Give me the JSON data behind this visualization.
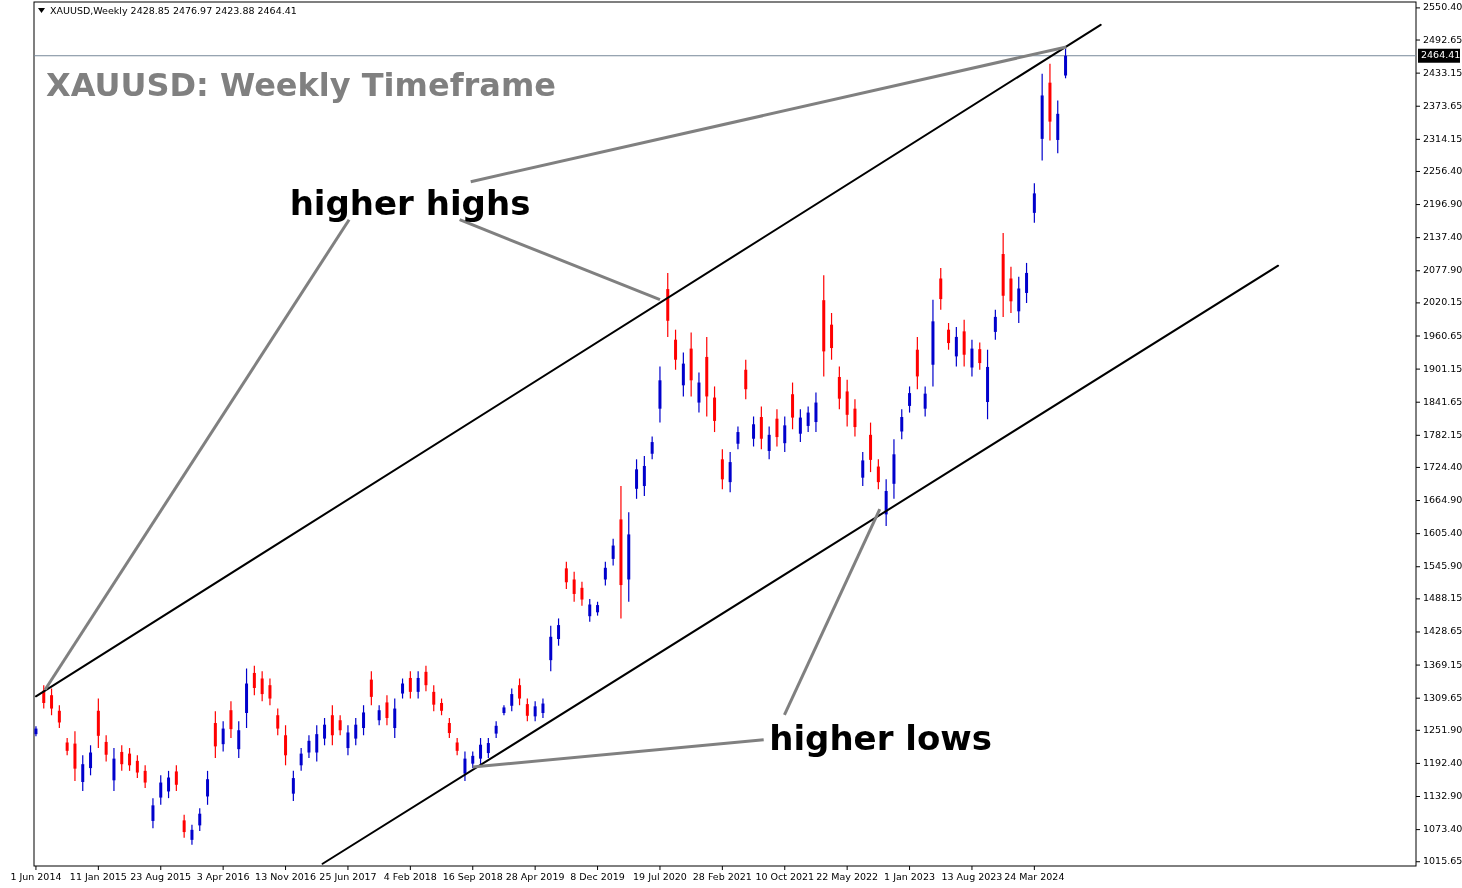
{
  "chart_data": {
    "type": "candlestick",
    "title": "XAUUSD: Weekly Timeframe",
    "subtitle": "XAUUSD,Weekly  2428.85 2476.97 2423.88 2464.41",
    "annotations": [
      {
        "text": "higher highs",
        "x": "2020-07-19",
        "y": 2026
      },
      {
        "text": "higher lows",
        "x": "2018-09-16",
        "y": 1186
      }
    ],
    "colors": [
      "#0000cc",
      "#ff0000",
      "#ff0000",
      "#ff0000",
      "#ff0000",
      "#ff0000",
      "#0000cc",
      "#0000cc",
      "#ff0000",
      "#ff0000",
      "#0000cc",
      "#ff0000",
      "#ff0000",
      "#ff0000",
      "#ff0000",
      "#0000cc",
      "#0000cc",
      "#0000cc",
      "#ff0000",
      "#ff0000",
      "#0000cc",
      "#0000cc",
      "#0000cc",
      "#ff0000",
      "#0000cc",
      "#ff0000",
      "#0000cc",
      "#0000cc",
      "#ff0000",
      "#ff0000",
      "#ff0000",
      "#ff0000",
      "#ff0000",
      "#0000cc",
      "#0000cc",
      "#0000cc",
      "#0000cc",
      "#0000cc",
      "#ff0000",
      "#ff0000",
      "#0000cc",
      "#0000cc",
      "#0000cc",
      "#ff0000",
      "#0000cc",
      "#ff0000",
      "#0000cc",
      "#0000cc",
      "#ff0000",
      "#0000cc",
      "#ff0000",
      "#ff0000",
      "#ff0000",
      "#ff0000",
      "#ff0000",
      "#0000cc",
      "#0000cc",
      "#0000cc",
      "#0000cc",
      "#0000cc",
      "#0000cc",
      "#0000cc",
      "#ff0000",
      "#ff0000",
      "#0000cc",
      "#0000cc",
      "#0000cc",
      "#0000cc",
      "#ff0000",
      "#ff0000",
      "#ff0000",
      "#0000cc",
      "#0000cc",
      "#0000cc",
      "#0000cc",
      "#ff0000",
      "#0000cc",
      "#0000cc",
      "#0000cc",
      "#0000cc",
      "#0000cc",
      "#ff0000",
      "#ff0000",
      "#0000cc",
      "#ff0000",
      "#0000cc",
      "#ff0000",
      "#ff0000",
      "#ff0000",
      "#0000cc",
      "#0000cc",
      "#ff0000",
      "#0000cc",
      "#ff0000",
      "#0000cc",
      "#ff0000",
      "#0000cc",
      "#ff0000",
      "#0000cc",
      "#0000cc",
      "#0000cc",
      "#ff0000",
      "#ff0000",
      "#ff0000",
      "#ff0000",
      "#ff0000",
      "#0000cc",
      "#ff0000",
      "#ff0000",
      "#0000cc",
      "#0000cc",
      "#0000cc",
      "#0000cc",
      "#ff0000",
      "#0000cc",
      "#0000cc",
      "#ff0000",
      "#ff0000",
      "#0000cc",
      "#ff0000",
      "#0000cc",
      "#ff0000",
      "#0000cc",
      "#0000cc",
      "#ff0000",
      "#ff0000",
      "#0000cc",
      "#0000cc",
      "#0000cc",
      "#0000cc",
      "#ff0000",
      "#0000cc",
      "#0000cc"
    ],
    "x": [
      "2014-06-01",
      "2014-06-29",
      "2014-07-27",
      "2014-08-24",
      "2014-09-21",
      "2014-10-19",
      "2014-11-16",
      "2014-12-14",
      "2015-01-11",
      "2015-02-08",
      "2015-03-08",
      "2015-04-05",
      "2015-05-03",
      "2015-05-31",
      "2015-06-28",
      "2015-07-26",
      "2015-08-23",
      "2015-09-20",
      "2015-10-18",
      "2015-11-15",
      "2015-12-13",
      "2016-01-10",
      "2016-02-07",
      "2016-03-06",
      "2016-04-03",
      "2016-05-01",
      "2016-05-29",
      "2016-06-26",
      "2016-07-24",
      "2016-08-21",
      "2016-09-18",
      "2016-10-16",
      "2016-11-13",
      "2016-12-11",
      "2017-01-08",
      "2017-02-05",
      "2017-03-05",
      "2017-04-02",
      "2017-04-30",
      "2017-05-28",
      "2017-06-25",
      "2017-07-23",
      "2017-08-20",
      "2017-09-17",
      "2017-10-15",
      "2017-11-12",
      "2017-12-10",
      "2018-01-07",
      "2018-02-04",
      "2018-03-04",
      "2018-04-01",
      "2018-04-29",
      "2018-05-27",
      "2018-06-24",
      "2018-07-22",
      "2018-08-19",
      "2018-09-16",
      "2018-10-14",
      "2018-11-11",
      "2018-12-09",
      "2019-01-06",
      "2019-02-03",
      "2019-03-03",
      "2019-03-31",
      "2019-04-28",
      "2019-05-26",
      "2019-06-23",
      "2019-07-21",
      "2019-08-18",
      "2019-09-15",
      "2019-10-13",
      "2019-11-10",
      "2019-12-08",
      "2020-01-05",
      "2020-02-02",
      "2020-03-01",
      "2020-03-29",
      "2020-04-26",
      "2020-05-24",
      "2020-06-21",
      "2020-07-19",
      "2020-08-16",
      "2020-09-13",
      "2020-10-11",
      "2020-11-08",
      "2020-12-06",
      "2021-01-03",
      "2021-01-31",
      "2021-02-28",
      "2021-03-28",
      "2021-04-25",
      "2021-05-23",
      "2021-06-20",
      "2021-07-18",
      "2021-08-15",
      "2021-09-12",
      "2021-10-10",
      "2021-11-07",
      "2021-12-05",
      "2022-01-02",
      "2022-01-30",
      "2022-02-27",
      "2022-03-27",
      "2022-04-24",
      "2022-05-22",
      "2022-06-19",
      "2022-07-17",
      "2022-08-14",
      "2022-09-11",
      "2022-10-09",
      "2022-11-06",
      "2022-12-04",
      "2023-01-01",
      "2023-01-29",
      "2023-02-26",
      "2023-03-26",
      "2023-04-23",
      "2023-05-21",
      "2023-06-18",
      "2023-07-16",
      "2023-08-13",
      "2023-09-10",
      "2023-10-08",
      "2023-11-05",
      "2023-12-03",
      "2023-12-31",
      "2024-01-28",
      "2024-02-25",
      "2024-03-24",
      "2024-04-21",
      "2024-05-19",
      "2024-06-16",
      "2024-07-14"
    ],
    "ohlc": [
      [
        1245,
        1259,
        1241,
        1255
      ],
      [
        1323,
        1333,
        1291,
        1301
      ],
      [
        1315,
        1327,
        1279,
        1291
      ],
      [
        1287,
        1297,
        1256,
        1266
      ],
      [
        1230,
        1238,
        1207,
        1215
      ],
      [
        1228,
        1250,
        1161,
        1183
      ],
      [
        1159,
        1207,
        1143,
        1191
      ],
      [
        1184,
        1225,
        1171,
        1212
      ],
      [
        1287,
        1309,
        1220,
        1242
      ],
      [
        1231,
        1243,
        1196,
        1208
      ],
      [
        1162,
        1220,
        1143,
        1201
      ],
      [
        1213,
        1225,
        1179,
        1191
      ],
      [
        1210,
        1220,
        1179,
        1189
      ],
      [
        1197,
        1207,
        1166,
        1176
      ],
      [
        1179,
        1189,
        1148,
        1158
      ],
      [
        1089,
        1130,
        1076,
        1117
      ],
      [
        1131,
        1171,
        1118,
        1158
      ],
      [
        1142,
        1179,
        1130,
        1167
      ],
      [
        1178,
        1189,
        1143,
        1154
      ],
      [
        1090,
        1100,
        1059,
        1069
      ],
      [
        1055,
        1082,
        1046,
        1073
      ],
      [
        1081,
        1112,
        1071,
        1102
      ],
      [
        1133,
        1179,
        1118,
        1164
      ],
      [
        1265,
        1286,
        1202,
        1223
      ],
      [
        1227,
        1268,
        1214,
        1255
      ],
      [
        1288,
        1304,
        1238,
        1254
      ],
      [
        1218,
        1268,
        1202,
        1252
      ],
      [
        1283,
        1363,
        1256,
        1336
      ],
      [
        1355,
        1368,
        1315,
        1328
      ],
      [
        1345,
        1358,
        1304,
        1317
      ],
      [
        1333,
        1345,
        1297,
        1309
      ],
      [
        1279,
        1291,
        1243,
        1255
      ],
      [
        1243,
        1261,
        1189,
        1207
      ],
      [
        1138,
        1179,
        1125,
        1166
      ],
      [
        1189,
        1220,
        1179,
        1210
      ],
      [
        1212,
        1243,
        1202,
        1233
      ],
      [
        1212,
        1261,
        1196,
        1245
      ],
      [
        1237,
        1274,
        1225,
        1262
      ],
      [
        1279,
        1297,
        1225,
        1243
      ],
      [
        1270,
        1279,
        1243,
        1252
      ],
      [
        1220,
        1261,
        1207,
        1248
      ],
      [
        1237,
        1274,
        1225,
        1262
      ],
      [
        1256,
        1297,
        1243,
        1284
      ],
      [
        1343,
        1358,
        1297,
        1312
      ],
      [
        1270,
        1297,
        1261,
        1288
      ],
      [
        1302,
        1315,
        1261,
        1274
      ],
      [
        1256,
        1309,
        1238,
        1291
      ],
      [
        1318,
        1345,
        1309,
        1336
      ],
      [
        1346,
        1358,
        1309,
        1321
      ],
      [
        1321,
        1358,
        1309,
        1346
      ],
      [
        1357,
        1368,
        1322,
        1333
      ],
      [
        1321,
        1333,
        1286,
        1298
      ],
      [
        1301,
        1309,
        1279,
        1287
      ],
      [
        1265,
        1274,
        1238,
        1247
      ],
      [
        1230,
        1238,
        1207,
        1215
      ],
      [
        1174,
        1214,
        1161,
        1201
      ],
      [
        1192,
        1214,
        1184,
        1206
      ],
      [
        1201,
        1238,
        1189,
        1226
      ],
      [
        1211,
        1238,
        1202,
        1229
      ],
      [
        1246,
        1268,
        1238,
        1260
      ],
      [
        1283,
        1297,
        1279,
        1293
      ],
      [
        1296,
        1327,
        1286,
        1317
      ],
      [
        1333,
        1345,
        1297,
        1309
      ],
      [
        1299,
        1309,
        1268,
        1278
      ],
      [
        1277,
        1304,
        1268,
        1295
      ],
      [
        1283,
        1309,
        1274,
        1300
      ],
      [
        1378,
        1440,
        1358,
        1420
      ],
      [
        1416,
        1453,
        1404,
        1441
      ],
      [
        1543,
        1555,
        1506,
        1518
      ],
      [
        1523,
        1537,
        1483,
        1497
      ],
      [
        1508,
        1519,
        1476,
        1487
      ],
      [
        1457,
        1488,
        1447,
        1478
      ],
      [
        1464,
        1483,
        1458,
        1477
      ],
      [
        1523,
        1555,
        1512,
        1544
      ],
      [
        1560,
        1596,
        1548,
        1584
      ],
      [
        1631,
        1691,
        1453,
        1513
      ],
      [
        1523,
        1644,
        1483,
        1604
      ],
      [
        1686,
        1739,
        1668,
        1721
      ],
      [
        1691,
        1745,
        1673,
        1727
      ],
      [
        1749,
        1780,
        1739,
        1770
      ],
      [
        1830,
        1906,
        1805,
        1881
      ],
      [
        2045,
        2074,
        1959,
        1988
      ],
      [
        1954,
        1972,
        1900,
        1918
      ],
      [
        1872,
        1931,
        1852,
        1911
      ],
      [
        1938,
        1967,
        1852,
        1881
      ],
      [
        1841,
        1895,
        1823,
        1877
      ],
      [
        1923,
        1959,
        1816,
        1852
      ],
      [
        1850,
        1870,
        1788,
        1808
      ],
      [
        1739,
        1757,
        1685,
        1703
      ],
      [
        1698,
        1752,
        1680,
        1734
      ],
      [
        1767,
        1798,
        1757,
        1788
      ],
      [
        1900,
        1918,
        1847,
        1865
      ],
      [
        1776,
        1816,
        1762,
        1802
      ],
      [
        1815,
        1834,
        1757,
        1776
      ],
      [
        1754,
        1798,
        1739,
        1783
      ],
      [
        1812,
        1829,
        1762,
        1779
      ],
      [
        1768,
        1816,
        1752,
        1800
      ],
      [
        1856,
        1877,
        1793,
        1814
      ],
      [
        1785,
        1829,
        1770,
        1814
      ],
      [
        1799,
        1834,
        1788,
        1823
      ],
      [
        1806,
        1859,
        1788,
        1841
      ],
      [
        2025,
        2070,
        1888,
        1933
      ],
      [
        1981,
        2002,
        1918,
        1939
      ],
      [
        1887,
        1906,
        1829,
        1848
      ],
      [
        1861,
        1882,
        1798,
        1819
      ],
      [
        1830,
        1847,
        1780,
        1797
      ],
      [
        1706,
        1752,
        1691,
        1737
      ],
      [
        1783,
        1805,
        1716,
        1738
      ],
      [
        1726,
        1739,
        1685,
        1698
      ],
      [
        1640,
        1703,
        1619,
        1682
      ],
      [
        1695,
        1775,
        1668,
        1748
      ],
      [
        1789,
        1829,
        1775,
        1815
      ],
      [
        1835,
        1870,
        1823,
        1858
      ],
      [
        1936,
        1959,
        1865,
        1888
      ],
      [
        1830,
        1870,
        1816,
        1857
      ],
      [
        1909,
        2026,
        1870,
        1987
      ],
      [
        2064,
        2083,
        2008,
        2027
      ],
      [
        1972,
        1984,
        1936,
        1948
      ],
      [
        1924,
        1977,
        1906,
        1959
      ],
      [
        1969,
        1990,
        1906,
        1927
      ],
      [
        1904,
        1954,
        1888,
        1938
      ],
      [
        1937,
        1949,
        1900,
        1912
      ],
      [
        1842,
        1936,
        1811,
        1905
      ],
      [
        1968,
        2008,
        1954,
        1995
      ],
      [
        2108,
        2146,
        1995,
        2033
      ],
      [
        2064,
        2085,
        2002,
        2023
      ],
      [
        2005,
        2067,
        1984,
        2046
      ],
      [
        2038,
        2092,
        2020,
        2074
      ],
      [
        2182,
        2235,
        2164,
        2217
      ],
      [
        2315,
        2432,
        2276,
        2393
      ],
      [
        2416,
        2450,
        2312,
        2346
      ],
      [
        2313,
        2384,
        2289,
        2360
      ],
      [
        2428.85,
        2476.97,
        2423.88,
        2464.41
      ]
    ],
    "series": [
      {
        "type": "line",
        "x": [
          "2014-06-01",
          "2024-11-17"
        ],
        "values": [
          1313,
          2520
        ],
        "color": "#000000"
      },
      {
        "type": "line",
        "x": [
          "2017-03-26",
          "2026-08-16"
        ],
        "values": [
          1012,
          2087
        ],
        "color": "#000000"
      }
    ],
    "ref_lines": [
      {
        "axis": "y",
        "value": 2464.41,
        "label": "2464.41",
        "color": "#778899"
      }
    ],
    "xlim": [
      "2014-05-25",
      "2027-12-24"
    ],
    "xticks": [
      {
        "value": "2014-06-01",
        "label": "1 Jun 2014"
      },
      {
        "value": "2015-01-11",
        "label": "11 Jan 2015"
      },
      {
        "value": "2015-08-23",
        "label": "23 Aug 2015"
      },
      {
        "value": "2016-04-03",
        "label": "3 Apr 2016"
      },
      {
        "value": "2016-11-13",
        "label": "13 Nov 2016"
      },
      {
        "value": "2017-06-25",
        "label": "25 Jun 2017"
      },
      {
        "value": "2018-02-04",
        "label": "4 Feb 2018"
      },
      {
        "value": "2018-09-16",
        "label": "16 Sep 2018"
      },
      {
        "value": "2019-04-28",
        "label": "28 Apr 2019"
      },
      {
        "value": "2019-12-08",
        "label": "8 Dec 2019"
      },
      {
        "value": "2020-07-19",
        "label": "19 Jul 2020"
      },
      {
        "value": "2021-02-28",
        "label": "28 Feb 2021"
      },
      {
        "value": "2021-10-10",
        "label": "10 Oct 2021"
      },
      {
        "value": "2022-05-22",
        "label": "22 May 2022"
      },
      {
        "value": "2023-01-01",
        "label": "1 Jan 2023"
      },
      {
        "value": "2023-08-13",
        "label": "13 Aug 2023"
      },
      {
        "value": "2024-03-24",
        "label": "24 Mar 2024"
      }
    ],
    "ylim": [
      1008,
      2561
    ],
    "yticks": [
      {
        "value": 1015.65,
        "label": "1015.65"
      },
      {
        "value": 1073.4,
        "label": "1073.40"
      },
      {
        "value": 1132.9,
        "label": "1132.90"
      },
      {
        "value": 1192.4,
        "label": "1192.40"
      },
      {
        "value": 1251.9,
        "label": "1251.90"
      },
      {
        "value": 1309.65,
        "label": "1309.65"
      },
      {
        "value": 1369.15,
        "label": "1369.15"
      },
      {
        "value": 1428.65,
        "label": "1428.65"
      },
      {
        "value": 1488.15,
        "label": "1488.15"
      },
      {
        "value": 1545.9,
        "label": "1545.90"
      },
      {
        "value": 1605.4,
        "label": "1605.40"
      },
      {
        "value": 1664.9,
        "label": "1664.90"
      },
      {
        "value": 1724.4,
        "label": "1724.40"
      },
      {
        "value": 1782.15,
        "label": "1782.15"
      },
      {
        "value": 1841.65,
        "label": "1841.65"
      },
      {
        "value": 1901.15,
        "label": "1901.15"
      },
      {
        "value": 1960.65,
        "label": "1960.65"
      },
      {
        "value": 2020.15,
        "label": "2020.15"
      },
      {
        "value": 2077.9,
        "label": "2077.90"
      },
      {
        "value": 2137.4,
        "label": "2137.40"
      },
      {
        "value": 2196.9,
        "label": "2196.90"
      },
      {
        "value": 2256.4,
        "label": "2256.40"
      },
      {
        "value": 2314.15,
        "label": "2314.15"
      },
      {
        "value": 2373.65,
        "label": "2373.65"
      },
      {
        "value": 2433.15,
        "label": "2433.15"
      },
      {
        "value": 2492.65,
        "label": "2492.65"
      },
      {
        "value": 2550.4,
        "label": "2550.40"
      }
    ]
  }
}
